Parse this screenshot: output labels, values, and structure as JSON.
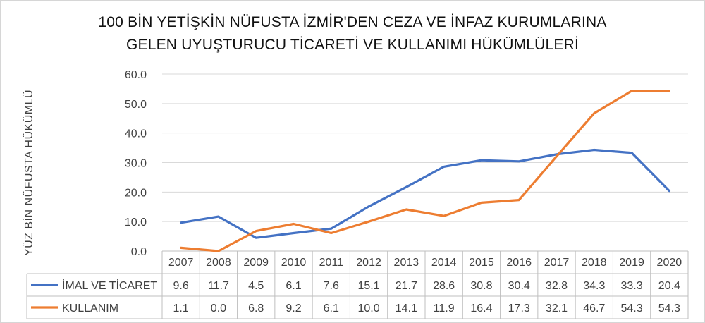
{
  "title": {
    "line1": "100 BİN YETİŞKİN NÜFUSTA İZMİR'DEN CEZA VE İNFAZ KURUMLARINA",
    "line2": "GELEN UYUŞTURUCU TİCARETİ VE KULLANIMI HÜKÜMLÜLERİ"
  },
  "chart_data": {
    "type": "line",
    "title": "100 BİN YETİŞKİN NÜFUSTA İZMİR'DEN CEZA VE İNFAZ KURUMLARINA GELEN UYUŞTURUCU TİCARETİ VE KULLANIMI HÜKÜMLÜLERİ",
    "xlabel": "",
    "ylabel": "YÜZ BİN NÜFUSTA  HÜKÜMLÜ",
    "ylim": [
      0,
      60
    ],
    "yticks": [
      "0.0",
      "10.0",
      "20.0",
      "30.0",
      "40.0",
      "50.0",
      "60.0"
    ],
    "grid": true,
    "legend": "data-table",
    "categories": [
      "2007",
      "2008",
      "2009",
      "2010",
      "2011",
      "2012",
      "2013",
      "2014",
      "2015",
      "2016",
      "2017",
      "2018",
      "2019",
      "2020"
    ],
    "series": [
      {
        "name": "İMAL VE TİCARET",
        "color": "#4472C4",
        "values": [
          9.6,
          11.7,
          4.5,
          6.1,
          7.6,
          15.1,
          21.7,
          28.6,
          30.8,
          30.4,
          32.8,
          34.3,
          33.3,
          20.4
        ]
      },
      {
        "name": "KULLANIM",
        "color": "#ED7D31",
        "values": [
          1.1,
          0.0,
          6.8,
          9.2,
          6.1,
          10.0,
          14.1,
          11.9,
          16.4,
          17.3,
          32.1,
          46.7,
          54.3,
          54.3
        ]
      }
    ]
  }
}
